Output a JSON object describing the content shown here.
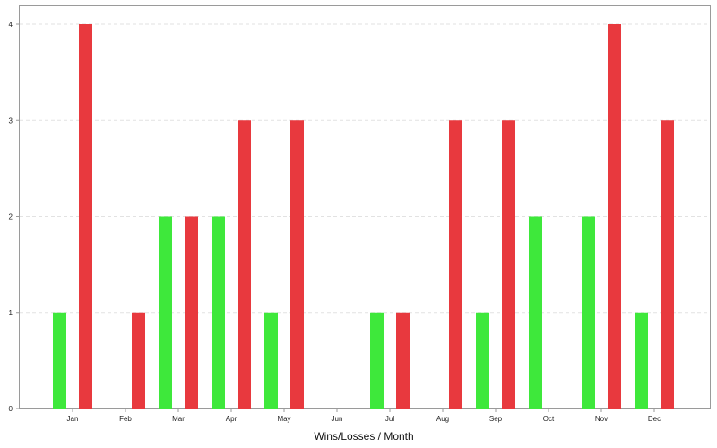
{
  "chart_data": {
    "type": "bar",
    "title": "",
    "xlabel": "Wins/Losses / Month",
    "ylabel": "",
    "categories": [
      "Jan",
      "Feb",
      "Mar",
      "Apr",
      "May",
      "Jun",
      "Jul",
      "Aug",
      "Sep",
      "Oct",
      "Nov",
      "Dec"
    ],
    "series": [
      {
        "color": "#3ee83b",
        "values": [
          1,
          0,
          2,
          2,
          1,
          0,
          1,
          0,
          1,
          2,
          2,
          1
        ]
      },
      {
        "color": "#e8393e",
        "values": [
          4,
          1,
          2,
          3,
          3,
          0,
          1,
          3,
          3,
          0,
          4,
          3
        ]
      }
    ],
    "ylim": [
      0,
      4
    ],
    "yticks": [
      "0",
      "1",
      "2",
      "3",
      "4"
    ],
    "grid": true,
    "legend": "none"
  }
}
